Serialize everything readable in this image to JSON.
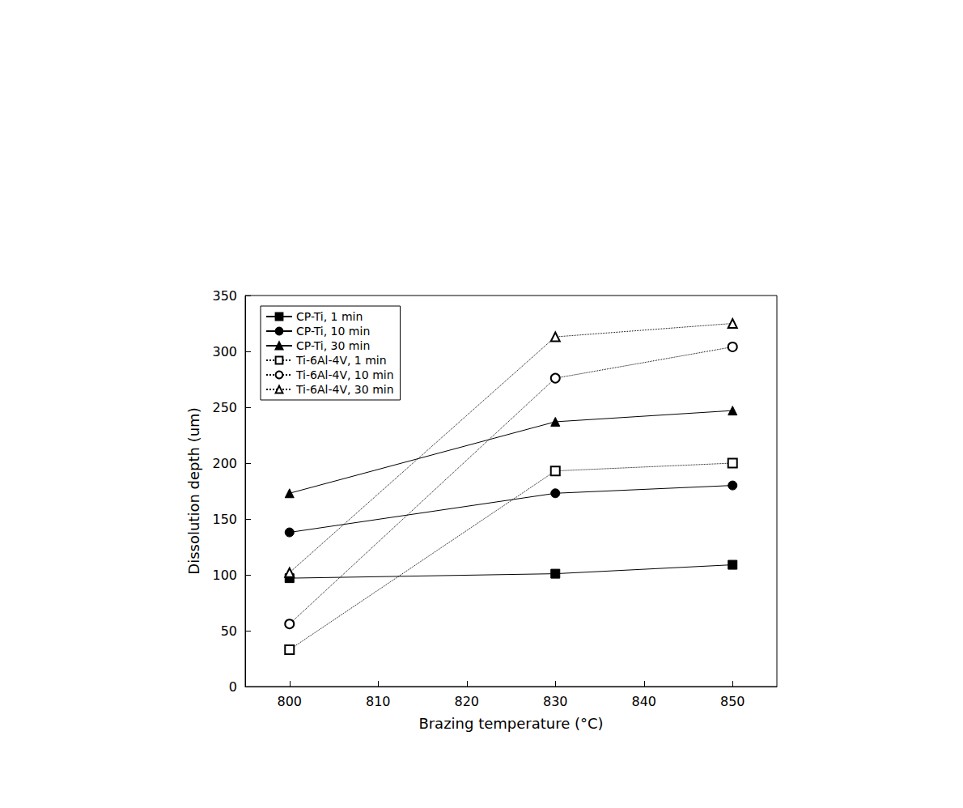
{
  "chart_data": {
    "type": "line",
    "x_label": "Brazing temperature (°C)",
    "y_label": "Dissolution depth (um)",
    "xlim": [
      795,
      855
    ],
    "xticks": [
      800,
      810,
      820,
      830,
      840,
      850
    ],
    "ylim": [
      0,
      350
    ],
    "yticks": [
      0,
      50,
      100,
      150,
      200,
      250,
      300,
      350
    ],
    "grid": false,
    "legend": "upper left",
    "series": [
      {
        "name": "CP-Ti, 1 min",
        "color": "#000000",
        "marker": "filled-square",
        "line_style": "solid",
        "x": [
          800,
          830,
          850
        ],
        "values": [
          97,
          101,
          109
        ]
      },
      {
        "name": "CP-Ti, 10 min",
        "color": "#000000",
        "marker": "filled-circle",
        "line_style": "solid",
        "x": [
          800,
          830,
          850
        ],
        "values": [
          138,
          173,
          180
        ]
      },
      {
        "name": "CP-Ti, 30 min",
        "color": "#000000",
        "marker": "filled-triangle",
        "line_style": "solid",
        "x": [
          800,
          830,
          850
        ],
        "values": [
          173,
          237,
          247
        ]
      },
      {
        "name": "Ti-6Al-4V, 1 min",
        "color": "#000000",
        "marker": "open-square",
        "line_style": "dotted",
        "x": [
          800,
          830,
          850
        ],
        "values": [
          33,
          193,
          200
        ]
      },
      {
        "name": "Ti-6Al-4V, 10 min",
        "color": "#000000",
        "marker": "open-circle",
        "line_style": "dotted",
        "x": [
          800,
          830,
          850
        ],
        "values": [
          56,
          276,
          304
        ]
      },
      {
        "name": "Ti-6Al-4V, 30 min",
        "color": "#000000",
        "marker": "open-triangle",
        "line_style": "dotted",
        "x": [
          800,
          830,
          850
        ],
        "values": [
          102,
          313,
          325
        ]
      }
    ]
  }
}
